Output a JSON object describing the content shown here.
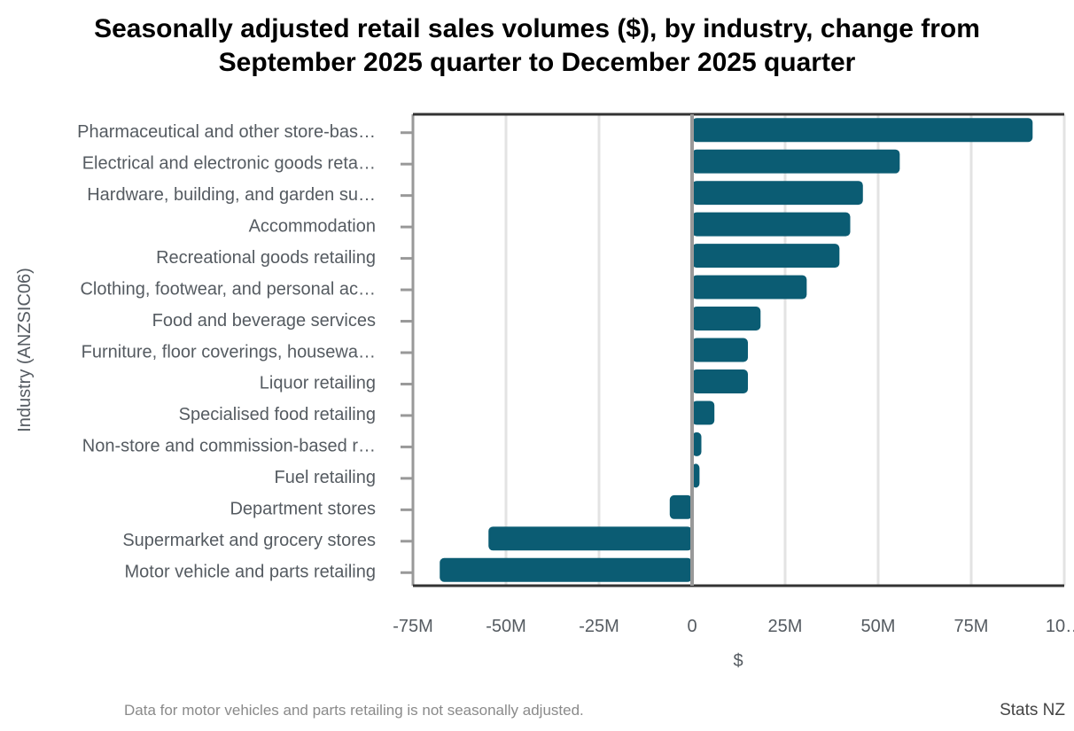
{
  "chart_data": {
    "type": "bar",
    "orientation": "horizontal",
    "title_lines": [
      "Seasonally adjusted retail sales volumes ($), by industry, change from",
      "September 2025 quarter to December 2025 quarter"
    ],
    "xlabel": "$",
    "ylabel": "Industry (ANZSIC06)",
    "xlim": [
      -75,
      100
    ],
    "x_unit": "million dollars",
    "x_ticks": [
      -75,
      -50,
      -25,
      0,
      25,
      50,
      75,
      100
    ],
    "x_tick_labels": [
      "-75M",
      "-50M",
      "-25M",
      "0",
      "25M",
      "50M",
      "75M",
      "10…"
    ],
    "grid": true,
    "legend": "none",
    "bar_color": "#0b5c73",
    "categories": [
      "Pharmaceutical and other store-bas…",
      "Electrical and electronic goods reta…",
      "Hardware, building, and garden su…",
      "Accommodation",
      "Recreational goods retailing",
      "Clothing, footwear, and personal ac…",
      "Food and beverage services",
      "Furniture, floor coverings, housewa…",
      "Liquor retailing",
      "Specialised food retailing",
      "Non-store and commission-based r…",
      "Fuel retailing",
      "Department stores",
      "Supermarket and grocery stores",
      "Motor vehicle and parts retailing"
    ],
    "values": [
      91.5,
      55.8,
      45.9,
      42.5,
      39.6,
      30.8,
      18.4,
      15.0,
      15.0,
      6.0,
      2.5,
      2.0,
      -6.0,
      -54.7,
      -67.8
    ]
  },
  "footnote": "Data for motor vehicles and parts retailing is not seasonally adjusted.",
  "source": "Stats NZ"
}
